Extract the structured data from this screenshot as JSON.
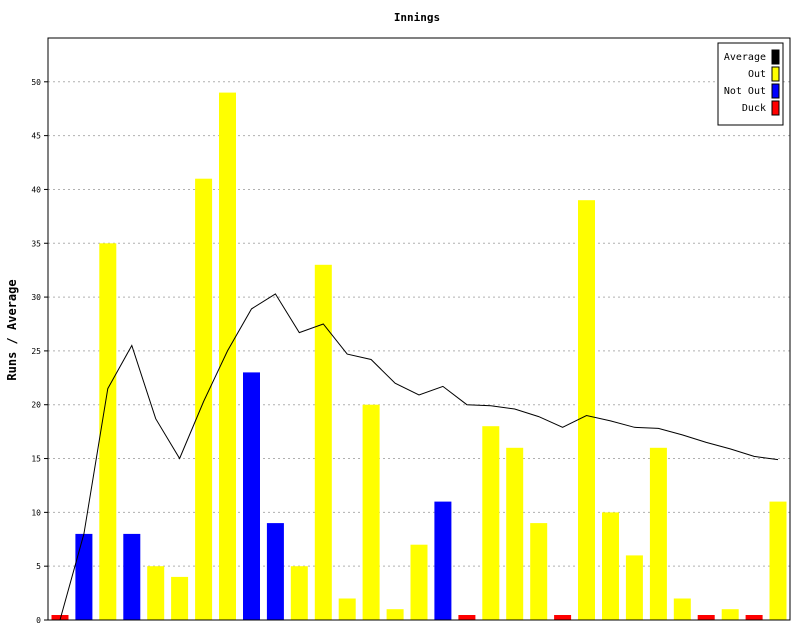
{
  "chart_data": {
    "type": "bar",
    "title": "Innings",
    "xlabel": "",
    "ylabel": "Runs / Average",
    "ylim": [
      0,
      54
    ],
    "yticks": [
      0,
      5,
      10,
      15,
      20,
      25,
      30,
      35,
      40,
      45,
      50
    ],
    "grid": true,
    "legend_position": "top-right",
    "legend": [
      {
        "name": "Average",
        "color": "#000000"
      },
      {
        "name": "Out",
        "color": "#ffff00"
      },
      {
        "name": "Not Out",
        "color": "#0000ff"
      },
      {
        "name": "Duck",
        "color": "#ff0000"
      }
    ],
    "innings": [
      {
        "runs": 0,
        "status": "Duck"
      },
      {
        "runs": 8,
        "status": "Not Out"
      },
      {
        "runs": 35,
        "status": "Out"
      },
      {
        "runs": 8,
        "status": "Not Out"
      },
      {
        "runs": 5,
        "status": "Out"
      },
      {
        "runs": 4,
        "status": "Out"
      },
      {
        "runs": 41,
        "status": "Out"
      },
      {
        "runs": 49,
        "status": "Out"
      },
      {
        "runs": 23,
        "status": "Not Out"
      },
      {
        "runs": 9,
        "status": "Not Out"
      },
      {
        "runs": 5,
        "status": "Out"
      },
      {
        "runs": 33,
        "status": "Out"
      },
      {
        "runs": 2,
        "status": "Out"
      },
      {
        "runs": 20,
        "status": "Out"
      },
      {
        "runs": 1,
        "status": "Out"
      },
      {
        "runs": 7,
        "status": "Out"
      },
      {
        "runs": 11,
        "status": "Not Out"
      },
      {
        "runs": 0,
        "status": "Duck"
      },
      {
        "runs": 18,
        "status": "Out"
      },
      {
        "runs": 16,
        "status": "Out"
      },
      {
        "runs": 9,
        "status": "Out"
      },
      {
        "runs": 0,
        "status": "Duck"
      },
      {
        "runs": 39,
        "status": "Out"
      },
      {
        "runs": 10,
        "status": "Out"
      },
      {
        "runs": 6,
        "status": "Out"
      },
      {
        "runs": 16,
        "status": "Out"
      },
      {
        "runs": 2,
        "status": "Out"
      },
      {
        "runs": 0,
        "status": "Duck"
      },
      {
        "runs": 1,
        "status": "Out"
      },
      {
        "runs": 0,
        "status": "Duck"
      },
      {
        "runs": 11,
        "status": "Out"
      }
    ],
    "average": [
      0,
      8,
      21.5,
      25.5,
      18.7,
      15,
      20.3,
      25,
      28.9,
      30.3,
      26.7,
      27.5,
      24.7,
      24.2,
      22,
      20.9,
      21.7,
      20,
      19.9,
      19.6,
      18.9,
      17.9,
      19,
      18.5,
      17.9,
      17.8,
      17.2,
      16.5,
      15.9,
      15.2,
      14.9
    ]
  }
}
